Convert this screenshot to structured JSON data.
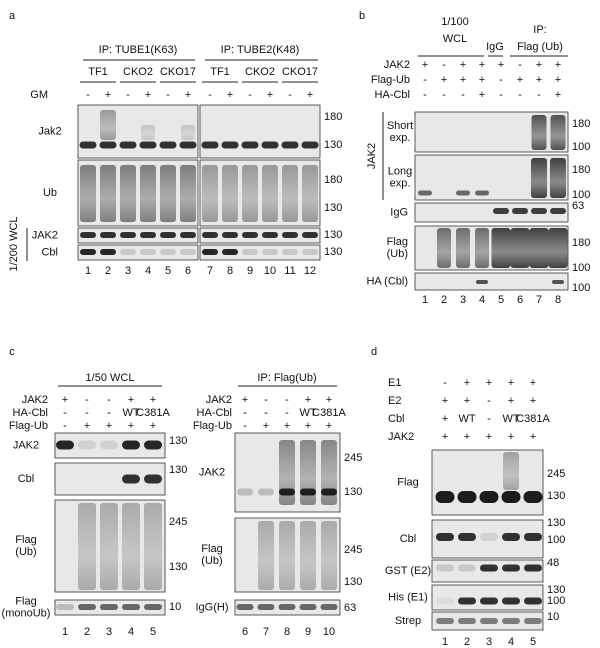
{
  "panels": {
    "a": {
      "letter": "a",
      "groups": [
        "IP: TUBE1(K63)",
        "IP: TUBE2(K48)"
      ],
      "subgroups": [
        "TF1",
        "CKO2",
        "CKO17",
        "TF1",
        "CKO2",
        "CKO17"
      ],
      "conditions": [
        {
          "label": "GM",
          "signs": [
            "-",
            "+",
            "-",
            "+",
            "-",
            "+",
            "-",
            "+",
            "-",
            "+",
            "-",
            "+"
          ]
        }
      ],
      "rows": [
        {
          "label": "Jak2",
          "markers": [
            180,
            130
          ]
        },
        {
          "label": "Ub",
          "markers": [
            180,
            130
          ]
        },
        {
          "label": "JAK2",
          "markers": [
            130
          ]
        },
        {
          "label": "Cbl",
          "markers": [
            130
          ]
        }
      ],
      "side_label": "1/200 WCL",
      "lanes": [
        1,
        2,
        3,
        4,
        5,
        6,
        7,
        8,
        9,
        10,
        11,
        12
      ]
    },
    "b": {
      "letter": "b",
      "headers": [
        "1/100",
        "WCL",
        "IgG",
        "IP:",
        "Flag (Ub)"
      ],
      "conditions": [
        {
          "label": "JAK2",
          "signs": [
            "+",
            "-",
            "+",
            "+",
            "+",
            "-",
            "+",
            "+"
          ]
        },
        {
          "label": "Flag-Ub",
          "signs": [
            "-",
            "+",
            "+",
            "+",
            "-",
            "+",
            "+",
            "+"
          ]
        },
        {
          "label": "HA-Cbl",
          "signs": [
            "-",
            "-",
            "-",
            "+",
            "-",
            "-",
            "-",
            "+"
          ]
        }
      ],
      "side_label": "JAK2",
      "rows": [
        {
          "label": [
            "Short",
            "exp."
          ],
          "markers": [
            180,
            100
          ]
        },
        {
          "label": [
            "Long",
            "exp."
          ],
          "markers": [
            180,
            100
          ]
        },
        {
          "label": "IgG",
          "markers": [
            63
          ]
        },
        {
          "label": [
            "Flag",
            "(Ub)"
          ],
          "markers": [
            180,
            100
          ]
        },
        {
          "label": "HA (Cbl)",
          "markers": [
            100
          ]
        }
      ],
      "lanes": [
        1,
        2,
        3,
        4,
        5,
        6,
        7,
        8
      ]
    },
    "c": {
      "letter": "c",
      "left": {
        "header": "1/50 WCL",
        "conditions": [
          {
            "label": "JAK2",
            "signs": [
              "+",
              "-",
              "-",
              "+",
              "+"
            ]
          },
          {
            "label": "HA-Cbl",
            "signs": [
              "-",
              "-",
              "-",
              "WT",
              "C381A"
            ]
          },
          {
            "label": "Flag-Ub",
            "signs": [
              "-",
              "+",
              "+",
              "+",
              "+"
            ]
          }
        ],
        "rows": [
          {
            "label": "JAK2",
            "markers": [
              130
            ]
          },
          {
            "label": "Cbl",
            "markers": [
              130
            ]
          },
          {
            "label": [
              "Flag",
              "(Ub)"
            ],
            "markers": [
              245,
              130
            ]
          },
          {
            "label": [
              "Flag",
              "(monoUb)"
            ],
            "markers": [
              10
            ]
          }
        ],
        "lanes": [
          1,
          2,
          3,
          4,
          5
        ]
      },
      "right": {
        "header": "IP: Flag(Ub)",
        "conditions": [
          {
            "label": "JAK2",
            "signs": [
              "+",
              "-",
              "-",
              "+",
              "+"
            ]
          },
          {
            "label": "HA-Cbl",
            "signs": [
              "-",
              "-",
              "-",
              "WT",
              "C381A"
            ]
          },
          {
            "label": "Flag-Ub",
            "signs": [
              "-",
              "+",
              "+",
              "+",
              "+"
            ]
          }
        ],
        "rows": [
          {
            "label": "JAK2",
            "markers": [
              245,
              130
            ]
          },
          {
            "label": [
              "Flag",
              "(Ub)"
            ],
            "markers": [
              245,
              130
            ]
          },
          {
            "label": "IgG(H)",
            "markers": [
              63
            ]
          }
        ],
        "lanes": [
          6,
          7,
          8,
          9,
          10
        ]
      }
    },
    "d": {
      "letter": "d",
      "conditions": [
        {
          "label": "E1",
          "signs": [
            "-",
            "+",
            "+",
            "+",
            "+"
          ]
        },
        {
          "label": "E2",
          "signs": [
            "+",
            "+",
            "-",
            "+",
            "+"
          ]
        },
        {
          "label": "Cbl",
          "signs": [
            "+",
            "WT",
            "-",
            "WT",
            "C381A"
          ]
        },
        {
          "label": "JAK2",
          "signs": [
            "+",
            "+",
            "+",
            "+",
            "+"
          ]
        }
      ],
      "rows": [
        {
          "label": "Flag",
          "markers": [
            245,
            130
          ]
        },
        {
          "label": "Cbl",
          "markers": [
            130,
            100
          ]
        },
        {
          "label": "GST (E2)",
          "markers": [
            48
          ]
        },
        {
          "label": "His (E1)",
          "markers": [
            130,
            100
          ]
        },
        {
          "label": "Strep",
          "markers": [
            10
          ]
        }
      ],
      "lanes": [
        1,
        2,
        3,
        4,
        5
      ]
    }
  }
}
